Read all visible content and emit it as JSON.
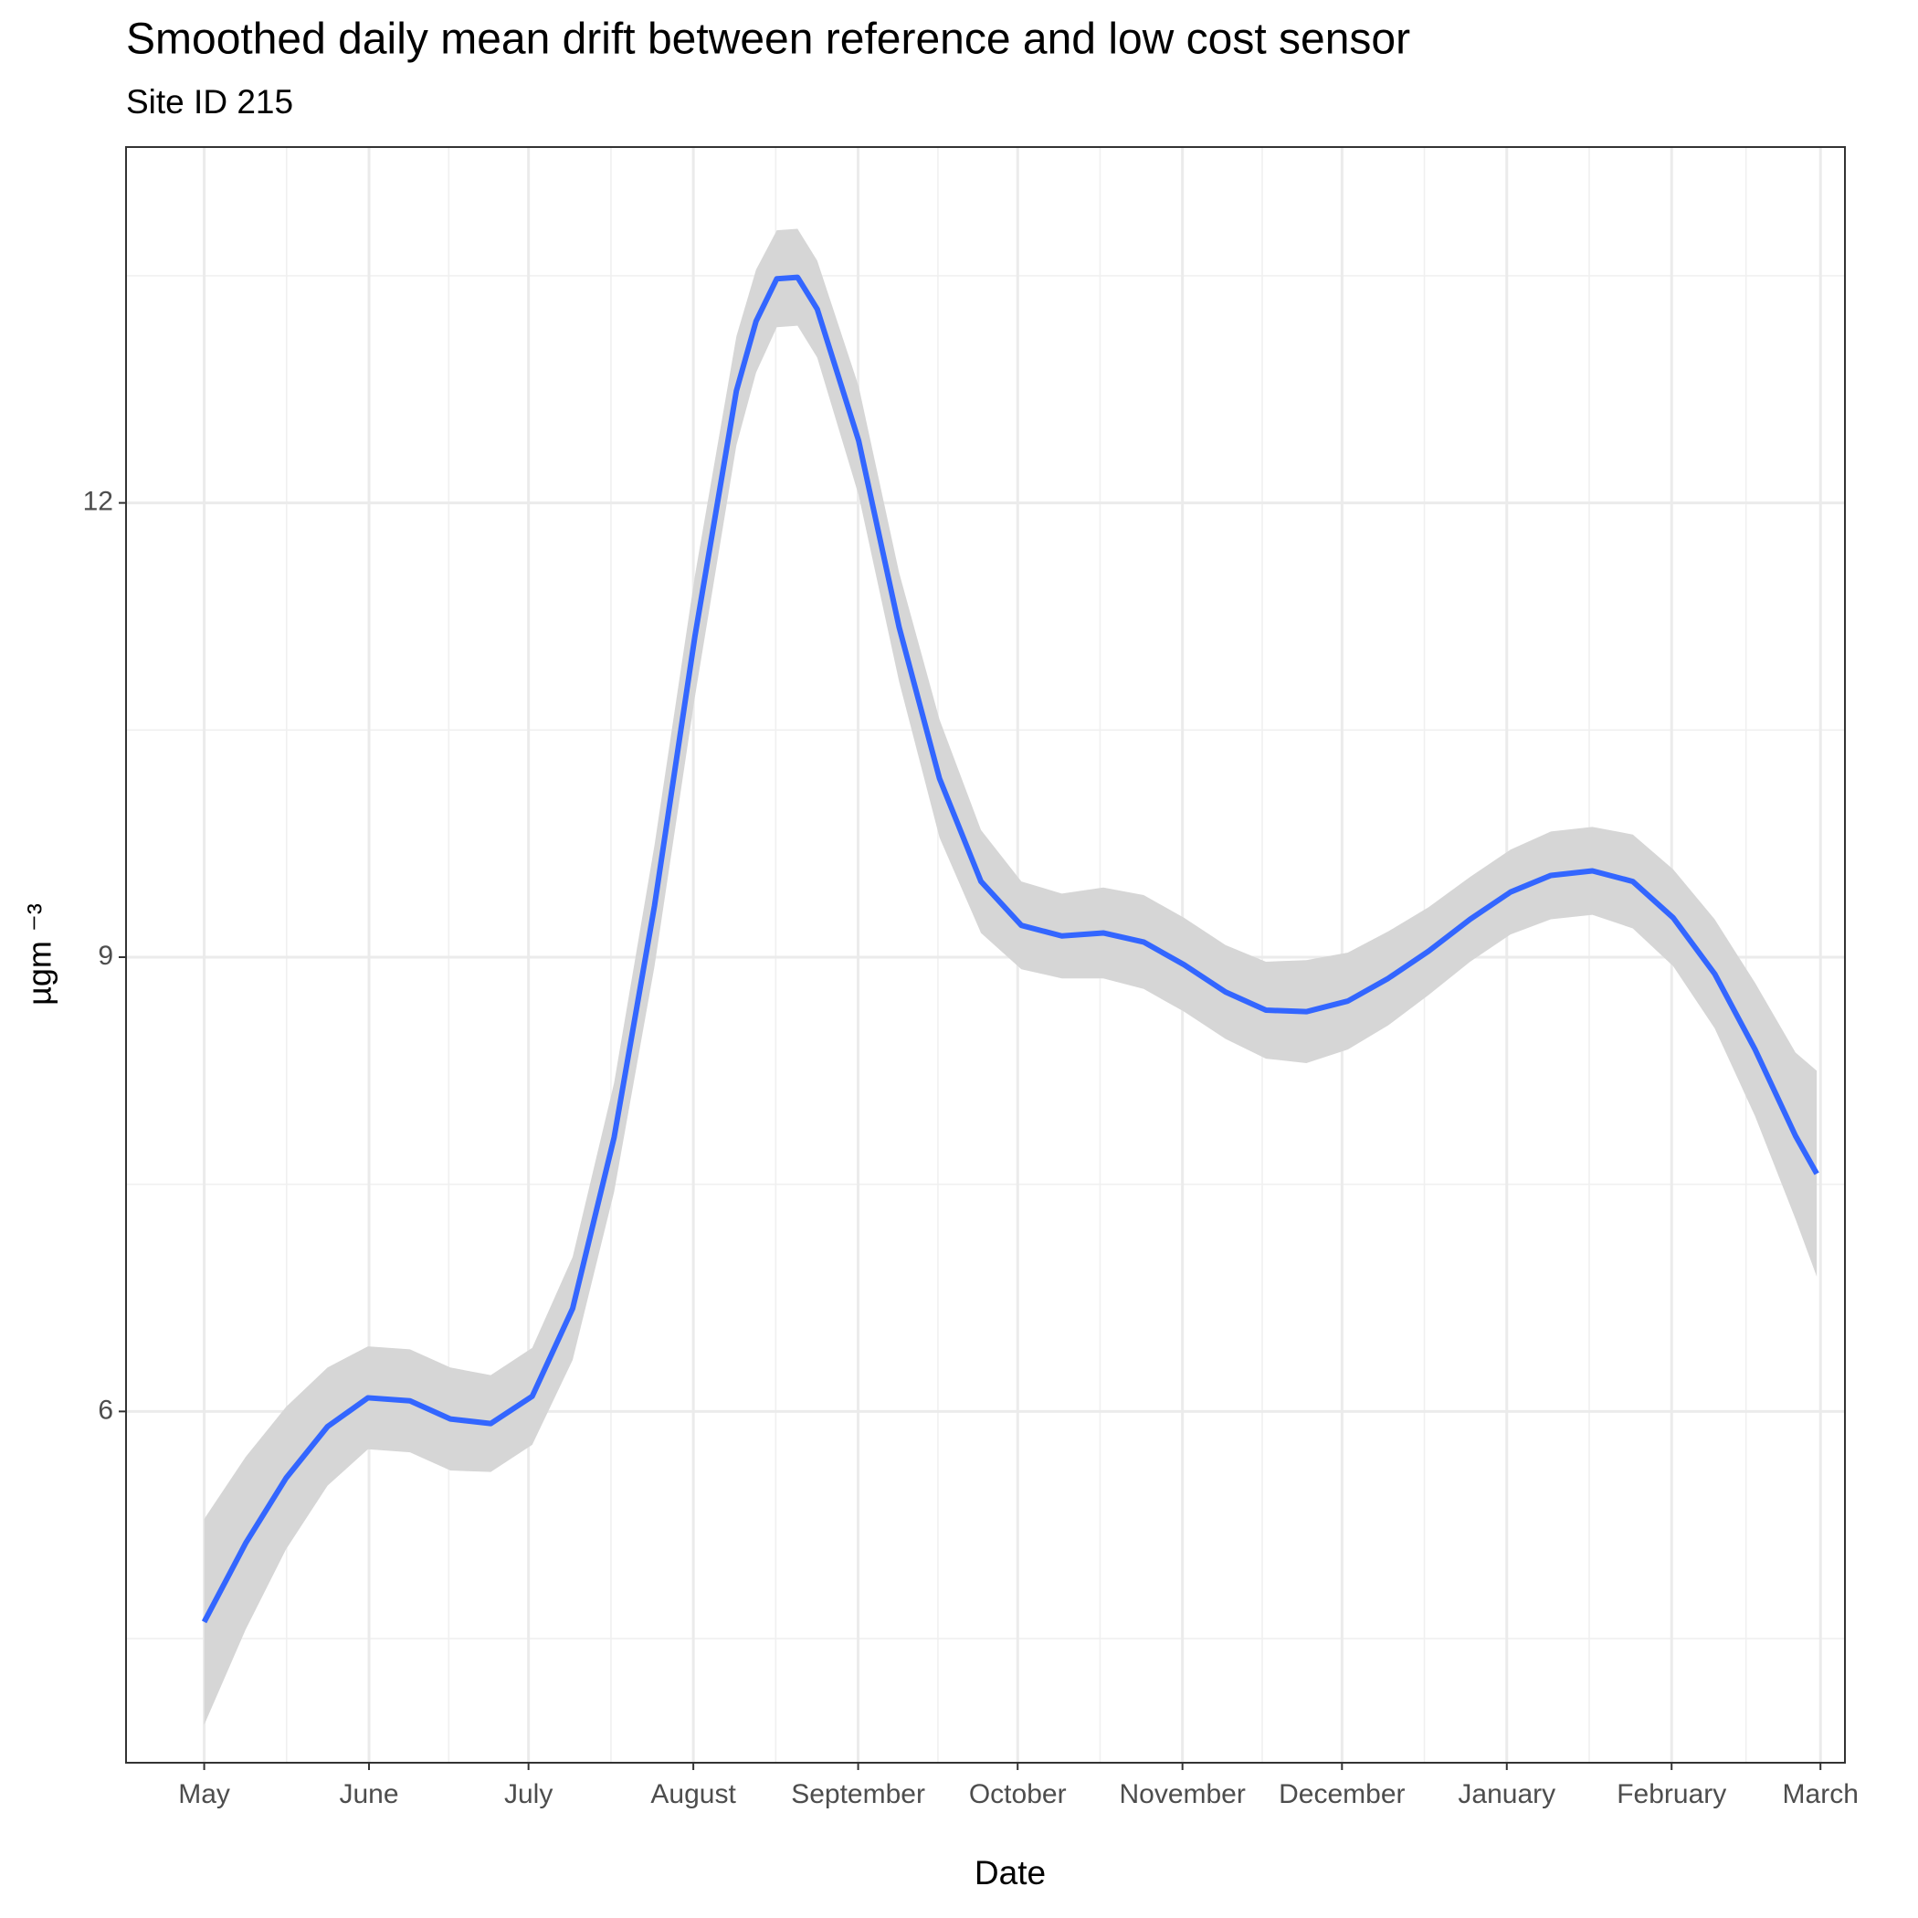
{
  "chart_data": {
    "type": "smooth",
    "title": "Smoothed daily mean drift between reference and low cost sensor",
    "subtitle": "Site ID 215",
    "xlabel": "Date",
    "ylabel": "µgm ⁻³",
    "x": [
      0,
      7.8,
      15.4,
      23.2,
      30.8,
      38.7,
      46.3,
      53.9,
      61.7,
      69.3,
      77.1,
      84.7,
      92.3,
      100.1,
      103.8,
      107.7,
      111.6,
      115.3,
      123.1,
      130.7,
      138.3,
      146.1,
      153.7,
      161.3,
      169.1,
      176.7,
      184.3,
      192.1,
      199.7,
      207.3,
      215.1,
      222.7,
      230.3,
      238.1,
      245.7,
      253.3,
      261.1,
      268.7,
      276.3,
      284.1,
      291.7,
      299.3,
      303.3
    ],
    "values": [
      4.61,
      5.13,
      5.56,
      5.9,
      6.09,
      6.07,
      5.95,
      5.92,
      6.1,
      6.68,
      7.81,
      9.34,
      11.12,
      12.74,
      13.2,
      13.48,
      13.49,
      13.28,
      12.41,
      11.18,
      10.18,
      9.5,
      9.21,
      9.14,
      9.16,
      9.1,
      8.95,
      8.77,
      8.65,
      8.64,
      8.71,
      8.86,
      9.04,
      9.25,
      9.43,
      9.54,
      9.57,
      9.5,
      9.26,
      8.89,
      8.39,
      7.82,
      7.57
    ],
    "upper": [
      5.29,
      5.7,
      6.03,
      6.29,
      6.43,
      6.41,
      6.29,
      6.24,
      6.42,
      7.02,
      8.17,
      9.74,
      11.52,
      13.1,
      13.54,
      13.8,
      13.81,
      13.6,
      12.77,
      11.54,
      10.57,
      9.84,
      9.5,
      9.42,
      9.46,
      9.41,
      9.26,
      9.08,
      8.97,
      8.98,
      9.03,
      9.17,
      9.33,
      9.53,
      9.71,
      9.83,
      9.86,
      9.81,
      9.58,
      9.25,
      8.83,
      8.37,
      8.25
    ],
    "lower": [
      3.93,
      4.56,
      5.09,
      5.51,
      5.75,
      5.73,
      5.61,
      5.6,
      5.78,
      6.34,
      7.45,
      8.94,
      10.72,
      12.38,
      12.86,
      13.16,
      13.17,
      12.96,
      12.05,
      10.82,
      9.79,
      9.16,
      8.92,
      8.86,
      8.86,
      8.79,
      8.64,
      8.46,
      8.33,
      8.3,
      8.39,
      8.55,
      8.75,
      8.97,
      9.15,
      9.25,
      9.28,
      9.19,
      8.94,
      8.53,
      7.95,
      7.27,
      6.89
    ],
    "color": "#3366ff",
    "band_color": "#d6d6d6",
    "xlim": [
      -14.7,
      308.6
    ],
    "ylim": [
      3.68,
      14.35
    ],
    "xticks": [
      {
        "value": 0,
        "label": "May"
      },
      {
        "value": 31,
        "label": "June"
      },
      {
        "value": 61,
        "label": "July"
      },
      {
        "value": 92,
        "label": "August"
      },
      {
        "value": 123,
        "label": "September"
      },
      {
        "value": 153,
        "label": "October"
      },
      {
        "value": 184,
        "label": "November"
      },
      {
        "value": 214,
        "label": "December"
      },
      {
        "value": 245,
        "label": "January"
      },
      {
        "value": 276,
        "label": "February"
      },
      {
        "value": 304,
        "label": "March"
      }
    ],
    "xminor": [
      15.5,
      46,
      76.5,
      107.5,
      138,
      168.5,
      199,
      229.5,
      260.5,
      290
    ],
    "yticks": [
      6,
      9,
      12
    ],
    "yminor": [
      4.5,
      7.5,
      10.5,
      13.5
    ],
    "grid": true
  }
}
